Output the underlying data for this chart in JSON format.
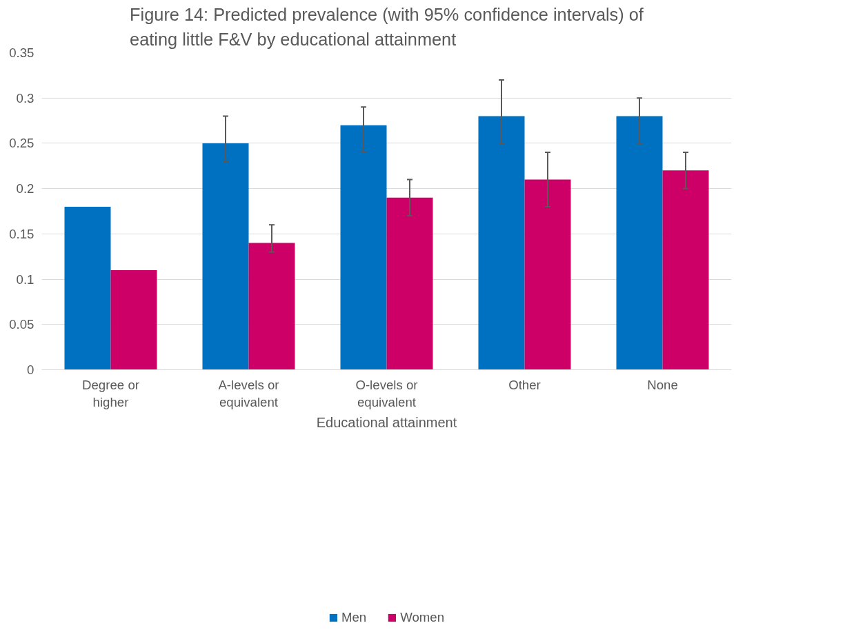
{
  "chart_data": {
    "type": "bar",
    "title": "Figure 14: Predicted prevalence (with 95% confidence intervals) of eating little F&V by educational attainment",
    "xlabel": "Educational attainment",
    "categories": [
      "Degree or higher",
      "A-levels or equivalent",
      "O-levels or equivalent",
      "Other",
      "None"
    ],
    "series": [
      {
        "name": "Men",
        "color": "#0070c0",
        "values": [
          0.18,
          0.25,
          0.27,
          0.28,
          0.28
        ],
        "errors": [
          null,
          [
            0.23,
            0.28
          ],
          [
            0.24,
            0.29
          ],
          [
            0.25,
            0.32
          ],
          [
            0.25,
            0.3
          ]
        ]
      },
      {
        "name": "Women",
        "color": "#cc0066",
        "values": [
          0.11,
          0.14,
          0.19,
          0.21,
          0.22
        ],
        "errors": [
          null,
          [
            0.13,
            0.16
          ],
          [
            0.17,
            0.21
          ],
          [
            0.18,
            0.24
          ],
          [
            0.2,
            0.24
          ]
        ]
      }
    ],
    "ylim": [
      0,
      0.35
    ],
    "yticks": [
      0,
      0.05,
      0.1,
      0.15,
      0.2,
      0.25,
      0.3,
      0.35
    ],
    "grid": "y",
    "legend": "bottom"
  }
}
